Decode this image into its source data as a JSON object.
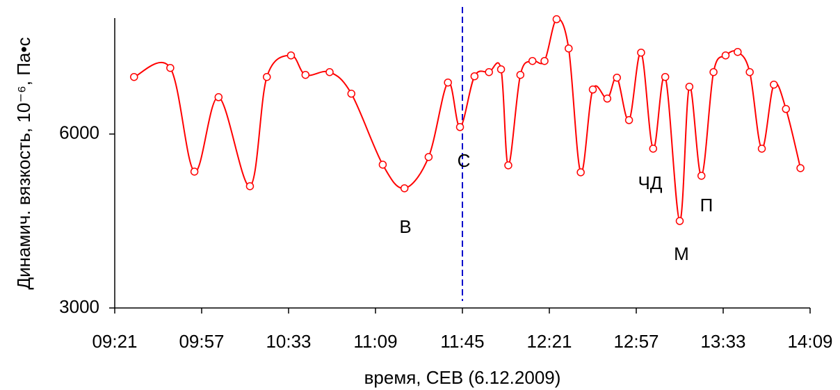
{
  "chart_data": {
    "type": "line",
    "x_label": "время, СЕВ (6.12.2009)",
    "y_label": "Динамич. вязкость, 10⁻⁶, Па•с",
    "x": [
      569,
      584,
      594,
      604,
      617,
      624,
      634,
      640,
      650,
      659,
      672,
      681,
      691,
      699,
      704,
      710,
      716,
      721,
      724,
      729,
      734,
      739,
      744,
      749,
      754,
      759,
      765,
      769,
      774,
      779,
      784,
      789,
      795,
      799,
      804,
      809,
      814,
      819,
      824,
      829,
      834,
      839,
      845
    ],
    "series": [
      {
        "name": "вязкость",
        "color": "#ff0000",
        "values": [
          6984,
          7140,
          5352,
          6636,
          5100,
          6984,
          7356,
          7020,
          7068,
          6696,
          5472,
          5064,
          5604,
          6888,
          6120,
          6996,
          7068,
          7116,
          5460,
          7020,
          7260,
          7260,
          7980,
          7476,
          5340,
          6768,
          6612,
          6972,
          6240,
          7404,
          5748,
          6984,
          4500,
          6816,
          5280,
          7068,
          7356,
          7416,
          7068,
          5748,
          6852,
          6432,
          5412
        ]
      }
    ],
    "xlim": [
      561,
      849
    ],
    "xticks": [
      {
        "value": 561,
        "label": "09:21"
      },
      {
        "value": 597,
        "label": "09:57"
      },
      {
        "value": 633,
        "label": "10:33"
      },
      {
        "value": 669,
        "label": "11:09"
      },
      {
        "value": 705,
        "label": "11:45"
      },
      {
        "value": 741,
        "label": "12:21"
      },
      {
        "value": 777,
        "label": "12:57"
      },
      {
        "value": 813,
        "label": "13:33"
      },
      {
        "value": 849,
        "label": "14:09"
      }
    ],
    "ylim": [
      3000,
      8000
    ],
    "yticks": [
      3000,
      6000
    ],
    "vline": {
      "x": 705,
      "color": "#0000cc"
    },
    "annotations": [
      "В",
      "С",
      "ЧД",
      "М",
      "П"
    ]
  }
}
